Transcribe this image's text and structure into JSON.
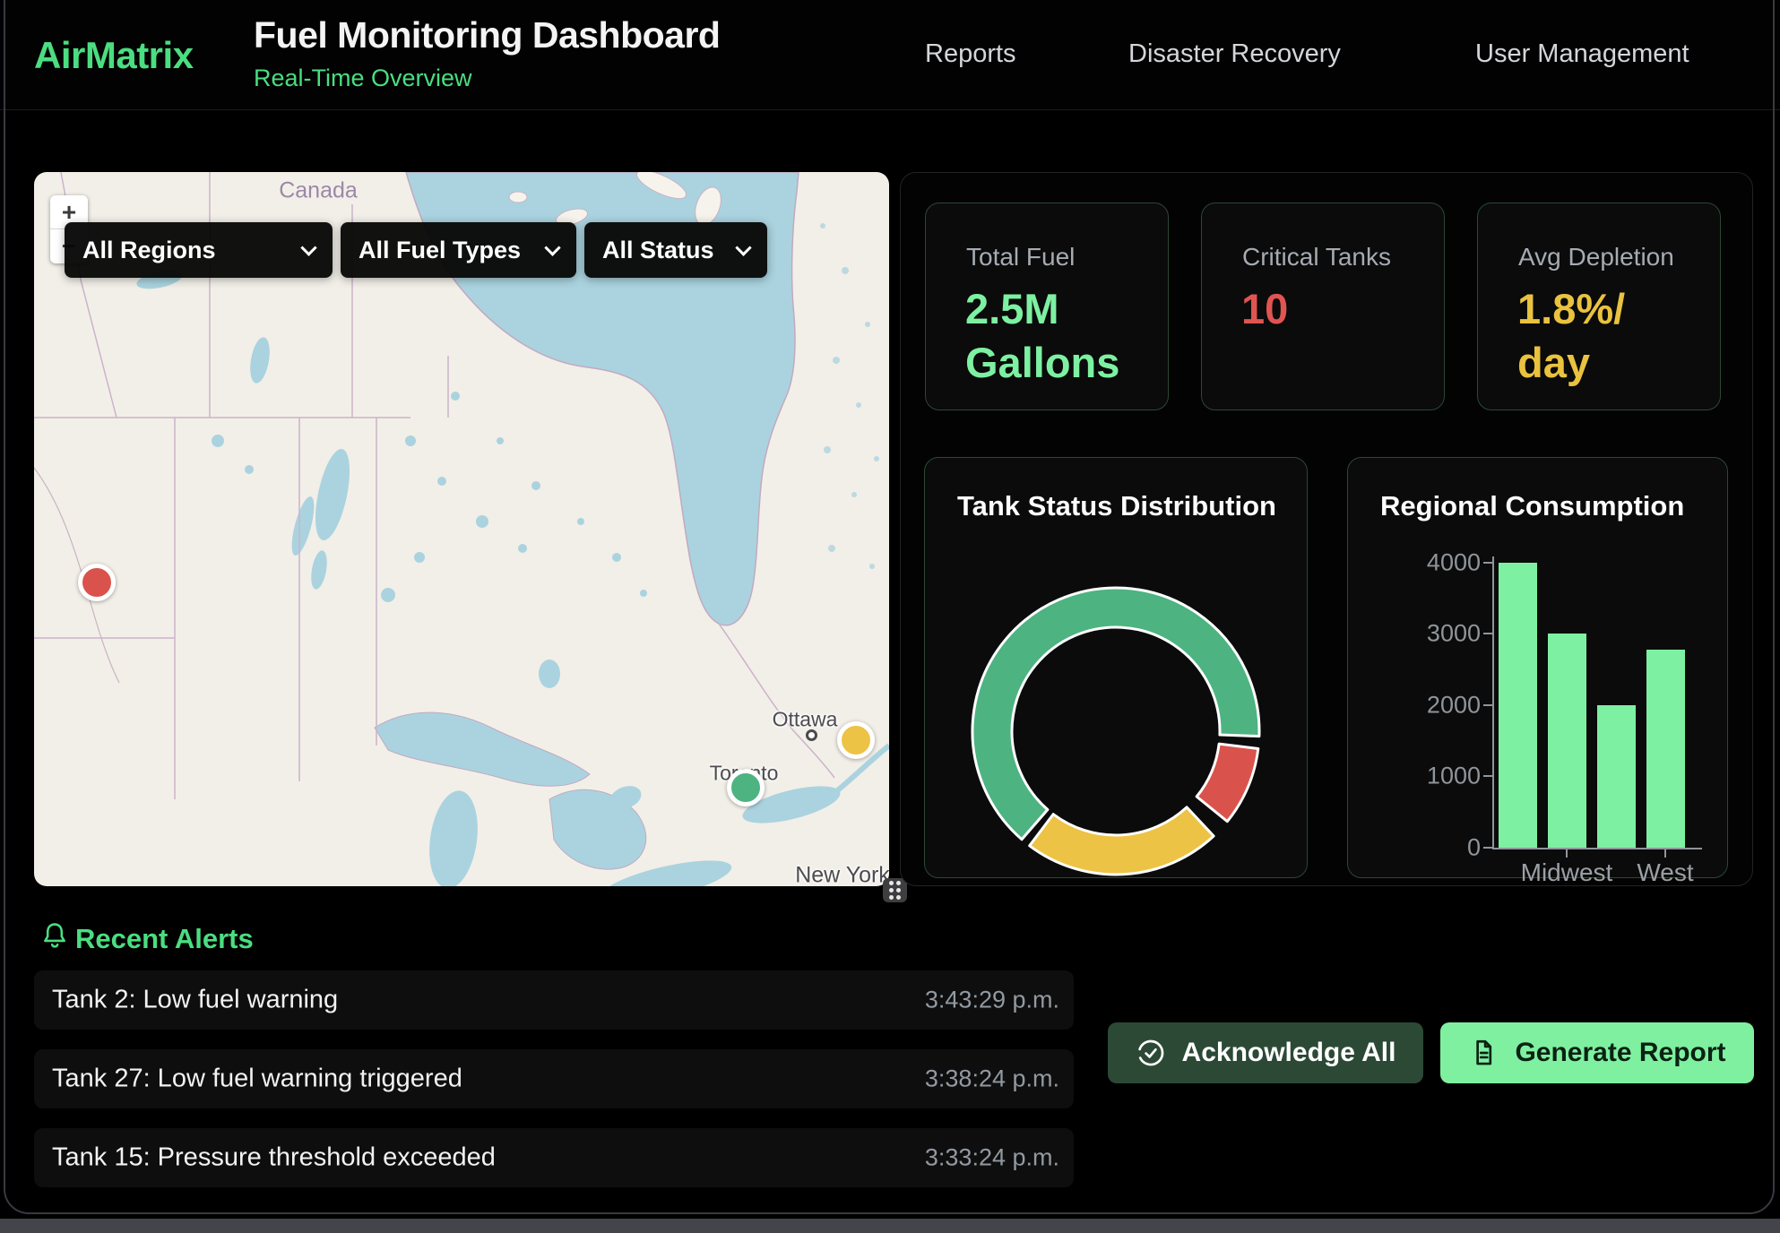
{
  "header": {
    "logo": "AirMatrix",
    "title": "Fuel Monitoring Dashboard",
    "subtitle": "Real-Time Overview",
    "nav": [
      "Reports",
      "Disaster Recovery",
      "User Management"
    ]
  },
  "map": {
    "filters": [
      "All Regions",
      "All Fuel Types",
      "All Status"
    ],
    "zoom_in": "+",
    "zoom_out": "−",
    "country_label": "Canada",
    "city_labels": [
      "Ottawa",
      "Toronto",
      "New York"
    ],
    "markers": [
      {
        "status": "critical",
        "color": "#d9534c"
      },
      {
        "status": "warning",
        "color": "#edc345"
      },
      {
        "status": "normal",
        "color": "#4db381"
      }
    ]
  },
  "stats": [
    {
      "label": "Total Fuel",
      "value": "2.5M Gallons",
      "line1": "2.5M",
      "line2": "Gallons",
      "color": "#7df0a2"
    },
    {
      "label": "Critical Tanks",
      "value": "10",
      "line1": "10",
      "line2": "",
      "color": "#e05451"
    },
    {
      "label": "Avg Depletion",
      "value": "1.8%/day",
      "line1": "1.8%/",
      "line2": "day",
      "color": "#eac23f"
    }
  ],
  "chart_data": [
    {
      "type": "pie",
      "donut": true,
      "title": "Tank Status Distribution",
      "legend": false,
      "slices": [
        {
          "name": "normal",
          "color": "#4db381",
          "percent": 67,
          "start_deg": 221,
          "end_deg": 452
        },
        {
          "name": "critical",
          "color": "#d9534c",
          "percent": 10,
          "start_deg": 97,
          "end_deg": 129
        },
        {
          "name": "warning",
          "color": "#edc345",
          "percent": 23,
          "start_deg": 137,
          "end_deg": 217
        }
      ]
    },
    {
      "type": "bar",
      "title": "Regional Consumption",
      "categories": [
        "",
        "Midwest",
        "",
        "West"
      ],
      "values": [
        4000,
        3000,
        2000,
        2780
      ],
      "ylim": [
        0,
        4000
      ],
      "yticks": [
        0,
        1000,
        2000,
        3000,
        4000
      ],
      "bar_color": "#7df0a2",
      "grid": false,
      "legend_position": "none"
    }
  ],
  "alerts": {
    "title": "Recent Alerts",
    "items": [
      {
        "text": "Tank 2: Low fuel warning",
        "time": "3:43:29 p.m."
      },
      {
        "text": "Tank 27: Low fuel warning triggered",
        "time": "3:38:24 p.m."
      },
      {
        "text": "Tank 15: Pressure threshold exceeded",
        "time": "3:33:24 p.m."
      }
    ]
  },
  "actions": {
    "acknowledge": "Acknowledge All",
    "generate": "Generate Report"
  },
  "colors": {
    "accent_green": "#4ade80",
    "value_green": "#7df0a2",
    "critical_red": "#e05451",
    "warning_amber": "#eac23f",
    "donut_green": "#4db381",
    "donut_yellow": "#edc345",
    "donut_red": "#d9534c"
  }
}
